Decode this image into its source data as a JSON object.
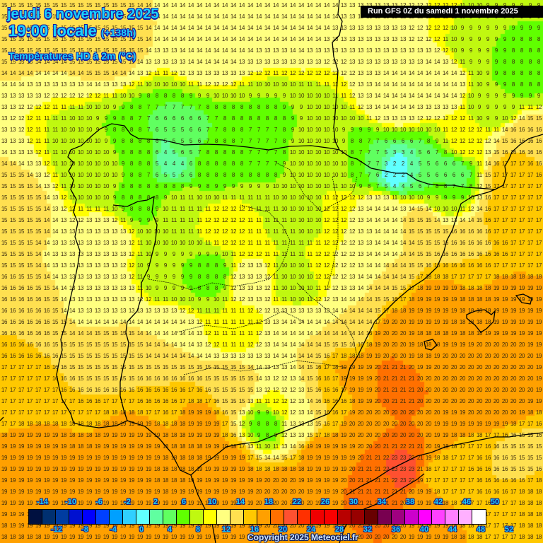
{
  "header": {
    "date": "jeudi 6 novembre 2025",
    "time": "19:00 locale",
    "lead": "(+138h)",
    "variable": "Températures HD à 2m (°C)",
    "run": "Run GFS 0Z du samedi 1 novembre 2025"
  },
  "legend": {
    "unit": "°C",
    "labels_top": [
      "-14",
      "-10",
      "-6",
      "-2",
      "2",
      "6",
      "10",
      "14",
      "18",
      "22",
      "26",
      "30",
      "34",
      "38",
      "42",
      "46",
      "50"
    ],
    "labels_bottom": [
      "-12",
      "-8",
      "-4",
      "0",
      "4",
      "8",
      "12",
      "16",
      "20",
      "24",
      "28",
      "32",
      "36",
      "40",
      "44",
      "48",
      "52"
    ],
    "colors": [
      "#001040",
      "#003070",
      "#003ca0",
      "#0010d0",
      "#0000ff",
      "#0040ff",
      "#00a0ff",
      "#30d0ff",
      "#60ffff",
      "#60ffa0",
      "#60ff60",
      "#60ff00",
      "#c0f810",
      "#ffff00",
      "#ffff80",
      "#ffe050",
      "#ffc800",
      "#ffa000",
      "#ff7000",
      "#ff5030",
      "#ff3000",
      "#f00000",
      "#f80000",
      "#b80000",
      "#980000",
      "#680000",
      "#780050",
      "#a00080",
      "#cc00cc",
      "#ff00ff",
      "#ff40ff",
      "#ff80ff",
      "#ffb0ff",
      "#ffffff"
    ]
  },
  "map": {
    "region": "Péninsule Ibérique",
    "sample_values": {
      "atlantic_nw": 15,
      "bay_of_biscay": 14,
      "cantabrian_range_min": 2,
      "pyrenees_min": 2,
      "central_plateau": 11,
      "portugal_coast": 15,
      "andalusia": 17,
      "mediterranean": 20,
      "mediterranean_max": 21,
      "algeria_coast_max": 23,
      "southern_france": 17,
      "balearics": 18,
      "nw_corner": 15
    }
  },
  "footer": {
    "copyright": "Copyright 2025 Meteociel.fr"
  }
}
